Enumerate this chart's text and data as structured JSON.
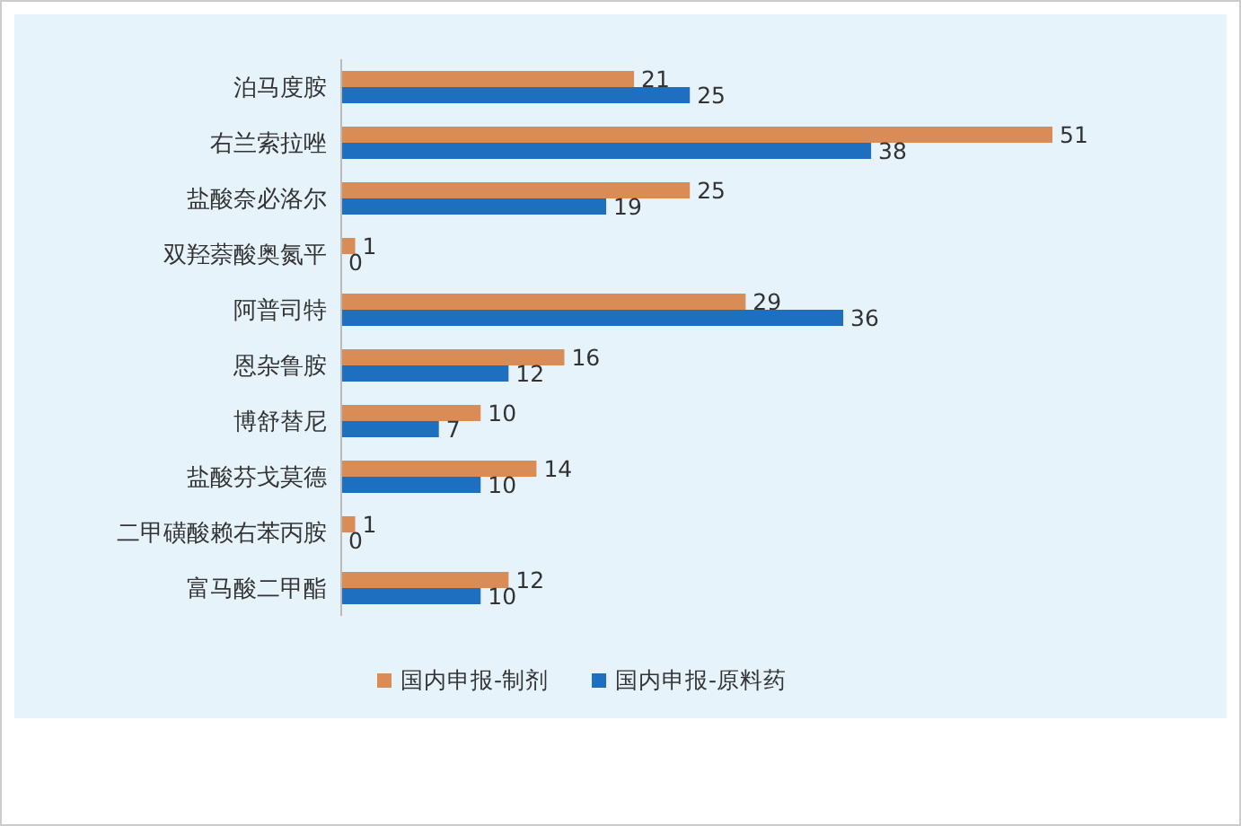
{
  "chart_data": {
    "type": "bar",
    "orientation": "horizontal",
    "data_labels": true,
    "legend": "bottom",
    "categories": [
      "泊马度胺",
      "右兰索拉唑",
      "盐酸奈必洛尔",
      "双羟萘酸奥氮平",
      "阿普司特",
      "恩杂鲁胺",
      "博舒替尼",
      "盐酸芬戈莫德",
      "二甲磺酸赖右苯丙胺",
      "富马酸二甲酯"
    ],
    "series": [
      {
        "name": "国内申报-制剂",
        "color": "#d98c55",
        "values": [
          21,
          51,
          25,
          1,
          29,
          16,
          10,
          14,
          1,
          12
        ]
      },
      {
        "name": "国内申报-原料药",
        "color": "#1f6fc0",
        "values": [
          25,
          38,
          19,
          0,
          36,
          12,
          7,
          10,
          0,
          10
        ]
      }
    ]
  }
}
